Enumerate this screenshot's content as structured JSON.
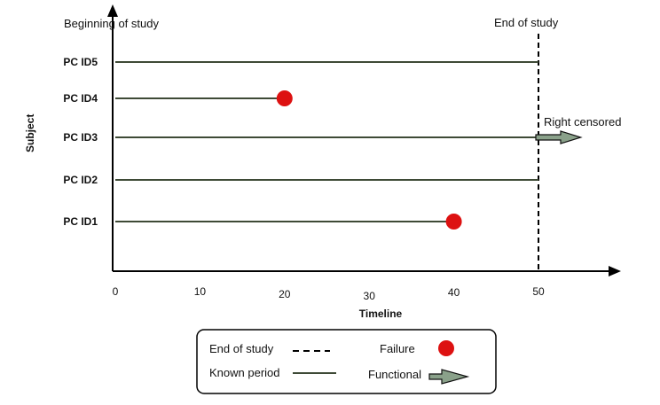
{
  "header": {
    "beginning_label": "Beginning of study",
    "end_label": "End  of study"
  },
  "axes": {
    "ylabel": "Subject",
    "xlabel": "Timeline",
    "x_ticks": [
      "0",
      "10",
      "20",
      "30",
      "40",
      "50"
    ]
  },
  "annotations": {
    "right_censored": "Right censored"
  },
  "subjects": [
    {
      "label": "PC ID5",
      "start": 0,
      "end": 50,
      "event": "none"
    },
    {
      "label": "PC ID4",
      "start": 0,
      "end": 20,
      "event": "failure"
    },
    {
      "label": "PC ID3",
      "start": 0,
      "end": 55,
      "event": "functional"
    },
    {
      "label": "PC ID2",
      "start": 0,
      "end": 50,
      "event": "none"
    },
    {
      "label": "PC ID1",
      "start": 0,
      "end": 40,
      "event": "failure"
    }
  ],
  "legend": {
    "end_of_study": "End of study",
    "failure": "Failure",
    "known_period": "Known period",
    "functional": "Functional"
  },
  "colors": {
    "line": "#3e4a36",
    "failure": "#dd1111",
    "arrow_fill": "#8aa18a",
    "axis": "#000000"
  }
}
